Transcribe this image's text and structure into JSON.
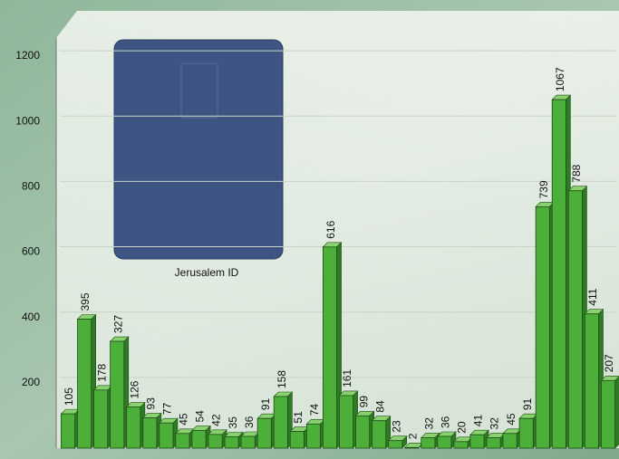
{
  "chart_data": {
    "type": "bar",
    "annotation": "Jerusalem ID",
    "values": [
      105,
      395,
      178,
      327,
      126,
      93,
      77,
      45,
      54,
      42,
      35,
      36,
      91,
      158,
      51,
      74,
      616,
      161,
      99,
      84,
      23,
      2,
      32,
      36,
      20,
      41,
      32,
      45,
      91,
      739,
      1067,
      788,
      411,
      207
    ],
    "color": "#4caf3a",
    "ylim": [
      0,
      1300
    ],
    "yticks": [
      200,
      400,
      600,
      800,
      1000,
      1200
    ],
    "grid": true
  }
}
